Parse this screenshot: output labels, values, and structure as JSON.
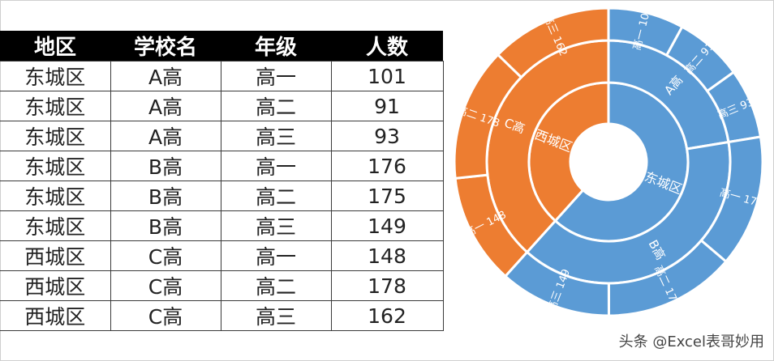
{
  "table": {
    "headers": [
      "地区",
      "学校名",
      "年级",
      "人数"
    ],
    "rows": [
      [
        "东城区",
        "A高",
        "高一",
        "101"
      ],
      [
        "东城区",
        "A高",
        "高二",
        "91"
      ],
      [
        "东城区",
        "A高",
        "高三",
        "93"
      ],
      [
        "东城区",
        "B高",
        "高一",
        "176"
      ],
      [
        "东城区",
        "B高",
        "高二",
        "175"
      ],
      [
        "东城区",
        "B高",
        "高三",
        "149"
      ],
      [
        "西城区",
        "C高",
        "高一",
        "148"
      ],
      [
        "西城区",
        "C高",
        "高二",
        "178"
      ],
      [
        "西城区",
        "C高",
        "高三",
        "162"
      ]
    ]
  },
  "chart_data": {
    "type": "sunburst",
    "colors": {
      "东城区": "#5b9bd5",
      "西城区": "#ed7d31"
    },
    "hierarchy": [
      {
        "name": "东城区",
        "children": [
          {
            "name": "A高",
            "children": [
              {
                "name": "高一",
                "value": 101
              },
              {
                "name": "高二",
                "value": 91
              },
              {
                "name": "高三",
                "value": 93
              }
            ]
          },
          {
            "name": "B高",
            "children": [
              {
                "name": "高一",
                "value": 176
              },
              {
                "name": "高二",
                "value": 175
              },
              {
                "name": "高三",
                "value": 149
              }
            ]
          }
        ]
      },
      {
        "name": "西城区",
        "children": [
          {
            "name": "C高",
            "children": [
              {
                "name": "高一",
                "value": 148
              },
              {
                "name": "高二",
                "value": 178
              },
              {
                "name": "高三",
                "value": 162
              }
            ]
          }
        ]
      }
    ]
  },
  "watermark": "头条 @Excel表哥妙用"
}
